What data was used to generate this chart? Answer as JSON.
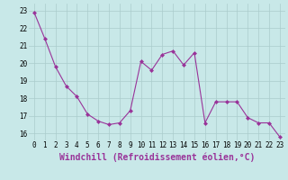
{
  "x": [
    0,
    1,
    2,
    3,
    4,
    5,
    6,
    7,
    8,
    9,
    10,
    11,
    12,
    13,
    14,
    15,
    16,
    17,
    18,
    19,
    20,
    21,
    22,
    23
  ],
  "y": [
    22.9,
    21.4,
    19.8,
    18.7,
    18.1,
    17.1,
    16.7,
    16.5,
    16.6,
    17.3,
    20.1,
    19.6,
    20.5,
    20.7,
    19.9,
    20.6,
    16.6,
    17.8,
    17.8,
    17.8,
    16.9,
    16.6,
    16.6,
    15.8
  ],
  "line_color": "#993399",
  "marker": "D",
  "marker_size": 2,
  "bg_color": "#c8e8e8",
  "grid_color": "#aacccc",
  "xlabel": "Windchill (Refroidissement éolien,°C)",
  "xlabel_fontsize": 7,
  "xlim": [
    -0.5,
    23.5
  ],
  "ylim": [
    15.6,
    23.4
  ],
  "yticks": [
    16,
    17,
    18,
    19,
    20,
    21,
    22,
    23
  ],
  "xticks": [
    0,
    1,
    2,
    3,
    4,
    5,
    6,
    7,
    8,
    9,
    10,
    11,
    12,
    13,
    14,
    15,
    16,
    17,
    18,
    19,
    20,
    21,
    22,
    23
  ],
  "tick_fontsize": 5.5,
  "linewidth": 0.8
}
